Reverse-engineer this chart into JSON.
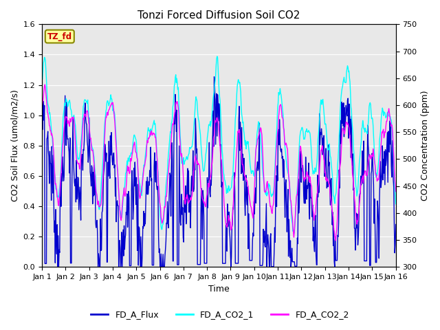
{
  "title": "Tonzi Forced Diffusion Soil CO2",
  "xlabel": "Time",
  "ylabel_left": "CO2 Soil Flux (umol/m2/s)",
  "ylabel_right": "CO2 Concentration (ppm)",
  "ylim_left": [
    0.0,
    1.6
  ],
  "ylim_right": [
    300,
    750
  ],
  "yticks_left": [
    0.0,
    0.2,
    0.4,
    0.6,
    0.8,
    1.0,
    1.2,
    1.4,
    1.6
  ],
  "yticks_right": [
    300,
    350,
    400,
    450,
    500,
    550,
    600,
    650,
    700,
    750
  ],
  "xtick_labels": [
    "Jan 1",
    "Jan 2",
    "Jan 3",
    "Jan 4",
    "Jan 5",
    "Jan 6",
    "Jan 7",
    "Jan 8",
    "Jan 9",
    "Jan 10",
    "Jan 11",
    "Jan 12",
    "Jan 13",
    "Jan 14",
    "Jan 15",
    "Jan 16"
  ],
  "color_flux": "#0000cd",
  "color_co2_1": "#00ffff",
  "color_co2_2": "#ff00ff",
  "tag_text": "TZ_fd",
  "tag_facecolor": "#ffffa0",
  "tag_edgecolor": "#888800",
  "tag_textcolor": "#cc0000",
  "background_color": "#e8e8e8",
  "n_days": 15,
  "pts_per_day": 48,
  "flux_base": 0.8,
  "flux_amp": 0.25,
  "flux_noise": 0.12,
  "co2_base": 525,
  "co2_amp": 80,
  "co2_noise": 18,
  "linewidth": 1.0,
  "figsize": [
    6.4,
    4.8
  ],
  "dpi": 100
}
